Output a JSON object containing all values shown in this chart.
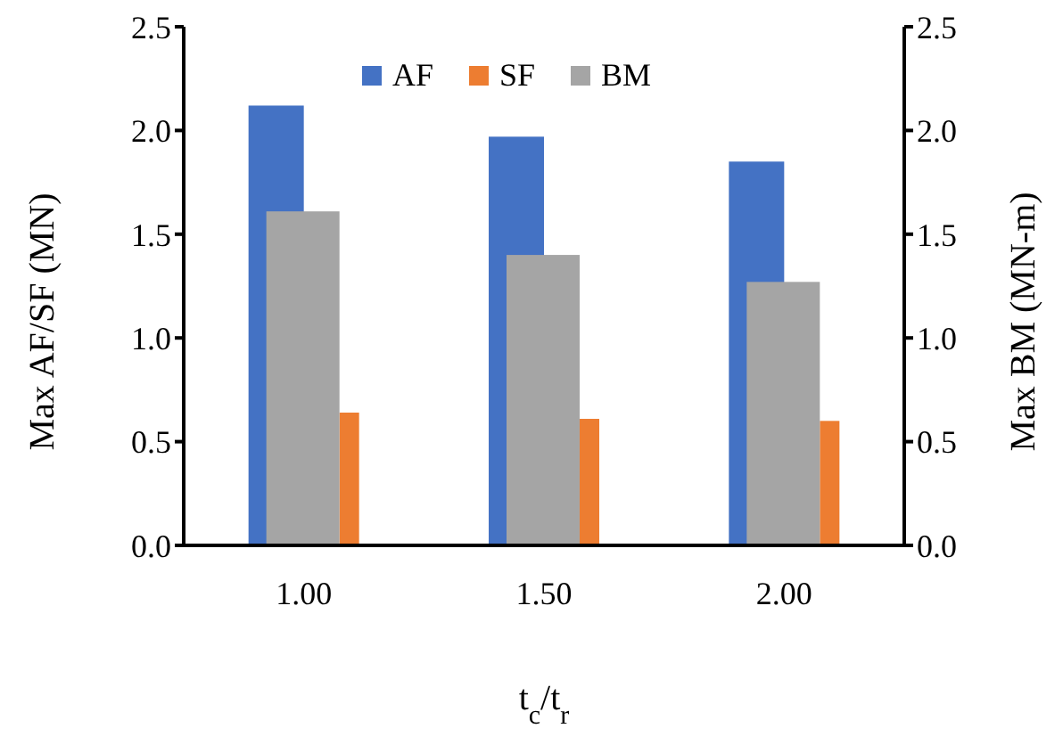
{
  "chart_data": {
    "type": "bar",
    "xlabel": "t$_{c}$/t$_{r}$",
    "ylabel": "Max AF/SF (MN)",
    "y2label": "Max BM (MN-m)",
    "categories": [
      "1.00",
      "1.50",
      "2.00"
    ],
    "series": [
      {
        "name": "AF",
        "color": "#4472c4",
        "values": [
          2.12,
          1.97,
          1.85
        ]
      },
      {
        "name": "SF",
        "color": "#ed7d31",
        "values": [
          0.64,
          0.61,
          0.6
        ]
      },
      {
        "name": "BM",
        "color": "#a5a5a5",
        "values": [
          1.61,
          1.4,
          1.27
        ],
        "axis": "y2"
      }
    ],
    "ylim": [
      0,
      2.5
    ],
    "yticks": [
      {
        "value": 0,
        "label": "0.0"
      },
      {
        "value": 0.5,
        "label": "0.5"
      },
      {
        "value": 1,
        "label": "1.0"
      },
      {
        "value": 1.5,
        "label": "1.5"
      },
      {
        "value": 2,
        "label": "2.0"
      },
      {
        "value": 2.5,
        "label": "2.5"
      }
    ],
    "y2lim": [
      0,
      2.5
    ],
    "y2ticks": [
      {
        "value": 0,
        "label": "0.0"
      },
      {
        "value": 0.5,
        "label": "0.5"
      },
      {
        "value": 1,
        "label": "1.0"
      },
      {
        "value": 1.5,
        "label": "1.5"
      },
      {
        "value": 2,
        "label": "2.0"
      },
      {
        "value": 2.5,
        "label": "2.5"
      }
    ],
    "legend": "top",
    "grid": false
  }
}
